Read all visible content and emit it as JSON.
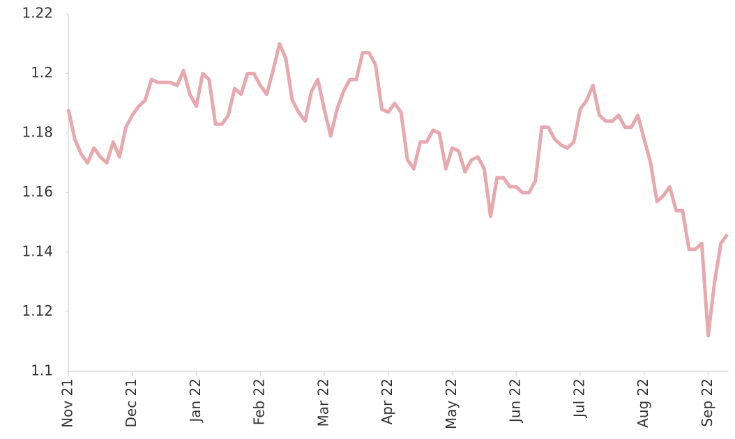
{
  "chart_data": {
    "type": "line",
    "categories": [
      "Nov 21",
      null,
      null,
      null,
      null,
      null,
      null,
      null,
      null,
      null,
      "Dec 21",
      null,
      null,
      null,
      null,
      null,
      null,
      null,
      null,
      null,
      "Jan 22",
      null,
      null,
      null,
      null,
      null,
      null,
      null,
      null,
      null,
      "Feb 22",
      null,
      null,
      null,
      null,
      null,
      null,
      null,
      null,
      null,
      "Mar 22",
      null,
      null,
      null,
      null,
      null,
      null,
      null,
      null,
      null,
      "Apr 22",
      null,
      null,
      null,
      null,
      null,
      null,
      null,
      null,
      null,
      "May 22",
      null,
      null,
      null,
      null,
      null,
      null,
      null,
      null,
      null,
      "Jun 22",
      null,
      null,
      null,
      null,
      null,
      null,
      null,
      null,
      null,
      "Jul 22",
      null,
      null,
      null,
      null,
      null,
      null,
      null,
      null,
      null,
      "Aug 22",
      null,
      null,
      null,
      null,
      null,
      null,
      null,
      null,
      null,
      "Sep 22",
      null,
      null,
      null
    ],
    "series": [
      {
        "color": "#e8a9ae",
        "values": [
          1.188,
          1.178,
          1.173,
          1.17,
          1.175,
          1.172,
          1.17,
          1.177,
          1.172,
          1.182,
          1.186,
          1.189,
          1.191,
          1.198,
          1.197,
          1.197,
          1.197,
          1.196,
          1.201,
          1.193,
          1.189,
          1.2,
          1.198,
          1.183,
          1.183,
          1.186,
          1.195,
          1.193,
          1.2,
          1.2,
          1.196,
          1.193,
          1.201,
          1.21,
          1.205,
          1.191,
          1.187,
          1.184,
          1.194,
          1.198,
          1.188,
          1.179,
          1.188,
          1.194,
          1.198,
          1.198,
          1.207,
          1.207,
          1.203,
          1.188,
          1.187,
          1.19,
          1.187,
          1.171,
          1.168,
          1.177,
          1.177,
          1.181,
          1.18,
          1.168,
          1.175,
          1.174,
          1.167,
          1.171,
          1.172,
          1.168,
          1.152,
          1.165,
          1.165,
          1.162,
          1.162,
          1.16,
          1.16,
          1.164,
          1.182,
          1.182,
          1.178,
          1.176,
          1.175,
          1.177,
          1.188,
          1.191,
          1.196,
          1.186,
          1.184,
          1.184,
          1.186,
          1.182,
          1.182,
          1.186,
          1.178,
          1.17,
          1.157,
          1.159,
          1.162,
          1.154,
          1.154,
          1.141,
          1.141,
          1.143,
          1.112,
          1.13,
          1.143,
          1.146
        ]
      }
    ],
    "ylim": [
      1.1,
      1.22
    ],
    "yticks": [
      {
        "value": 1.1,
        "label": "1.1"
      },
      1.12,
      1.14,
      1.16,
      1.18,
      {
        "value": 1.2,
        "label": "1.2"
      },
      1.22
    ]
  }
}
